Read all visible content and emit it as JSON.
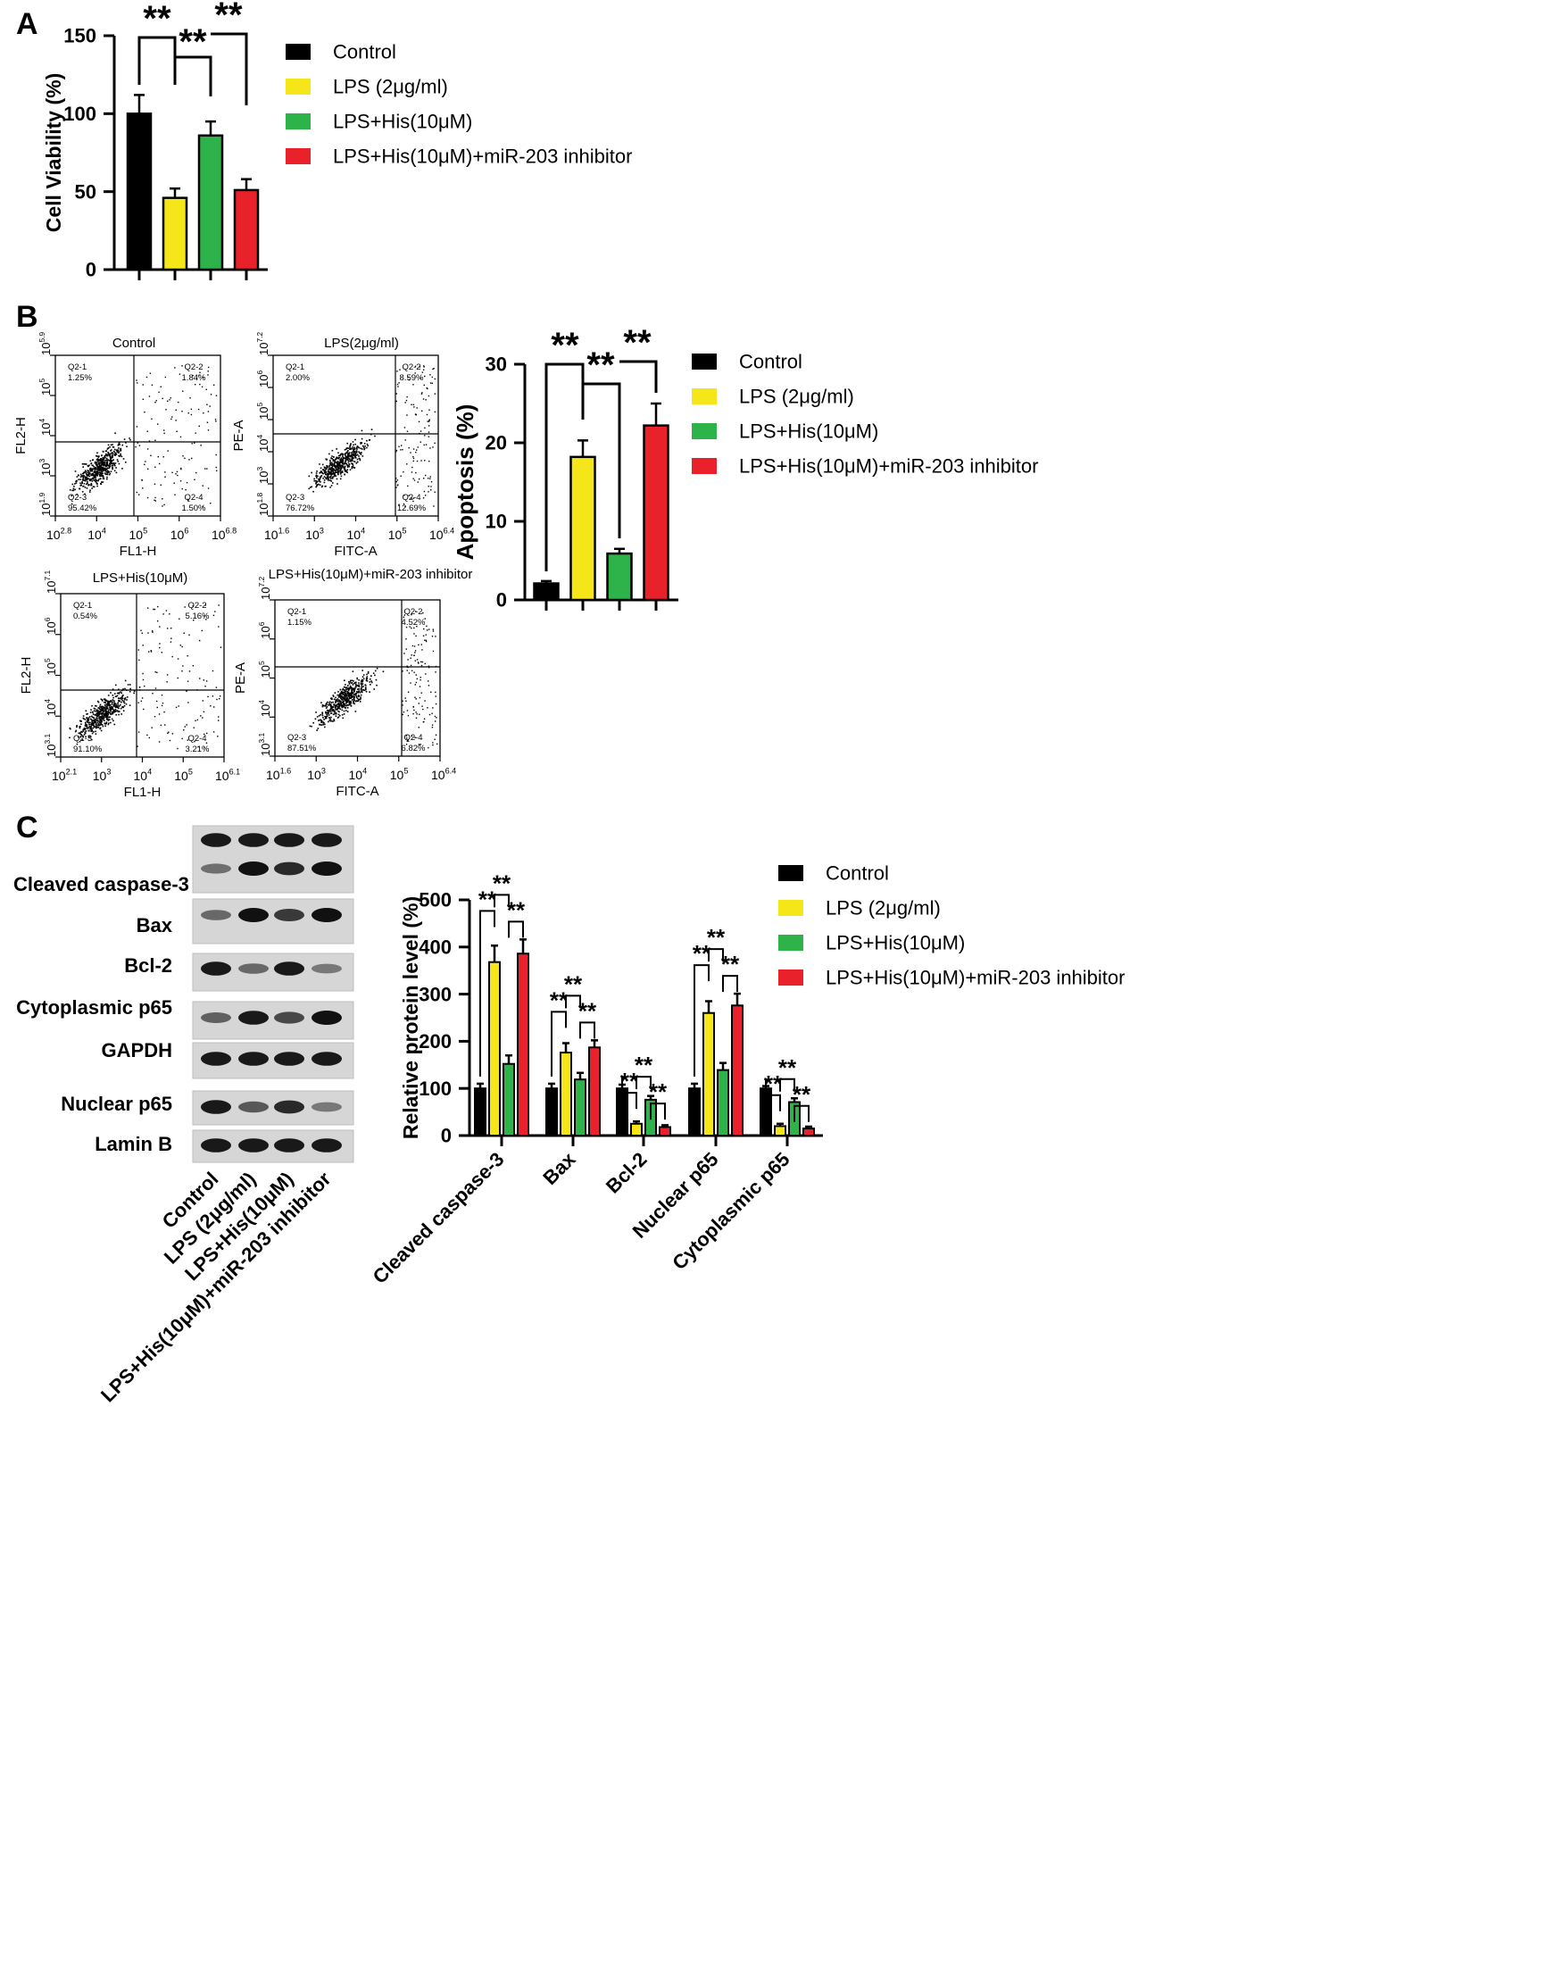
{
  "groups": [
    "Control",
    "LPS (2μg/ml)",
    "LPS+His(10μM)",
    "LPS+His(10μM)+miR-203 inhibitor"
  ],
  "group_colors": [
    "#000000",
    "#f5e61a",
    "#2db34a",
    "#e8212a"
  ],
  "sig_label": "**",
  "panels": {
    "a": "A",
    "b": "B",
    "c": "C"
  },
  "flow_plots": [
    {
      "title": "Control",
      "xlabel": "FL1-H",
      "ylabel": "FL2-H",
      "xticks": [
        "10",
        "10",
        "10",
        "10",
        "10",
        "10"
      ],
      "xtick_exps": [
        "2.8",
        "4",
        "5",
        "6",
        "6.8",
        ""
      ],
      "yticks": [
        "10",
        "10",
        "10",
        "10",
        "10"
      ],
      "ytick_exps": [
        "1.9",
        "3",
        "4",
        "5",
        "5.9"
      ],
      "quadrants": {
        "q1": "Q2-1",
        "q1_val": "1.25%",
        "q2": "Q2-2",
        "q2_val": "1.84%",
        "q3": "Q2-3",
        "q3_val": "95.42%",
        "q4": "Q2-4",
        "q4_val": "1.50%"
      }
    },
    {
      "title": "LPS(2μg/ml)",
      "xlabel": "FITC-A",
      "ylabel": "PE-A",
      "xticks": [
        "10",
        "10",
        "10",
        "10",
        "10",
        "10"
      ],
      "xtick_exps": [
        "1.6",
        "3",
        "4",
        "5",
        "6.4",
        ""
      ],
      "yticks": [
        "10",
        "10",
        "10",
        "10",
        "10",
        "10"
      ],
      "ytick_exps": [
        "1.8",
        "3",
        "4",
        "5",
        "6",
        "7.2"
      ],
      "quadrants": {
        "q1": "Q2-1",
        "q1_val": "2.00%",
        "q2": "Q2-2",
        "q2_val": "8.59%",
        "q3": "Q2-3",
        "q3_val": "76.72%",
        "q4": "Q2-4",
        "q4_val": "12.69%"
      }
    },
    {
      "title": "LPS+His(10μM)",
      "xlabel": "FL1-H",
      "ylabel": "FL2-H",
      "xticks": [
        "10",
        "10",
        "10",
        "10",
        "10",
        "10"
      ],
      "xtick_exps": [
        "2.1",
        "3",
        "4",
        "5",
        "6.1",
        ""
      ],
      "yticks": [
        "10",
        "10",
        "10",
        "10",
        "10"
      ],
      "ytick_exps": [
        "3.1",
        "4",
        "5",
        "6",
        "7.1"
      ],
      "quadrants": {
        "q1": "Q2-1",
        "q1_val": "0.54%",
        "q2": "Q2-2",
        "q2_val": "5.16%",
        "q3": "Q2-3",
        "q3_val": "91.10%",
        "q4": "Q2-4",
        "q4_val": "3.21%"
      }
    },
    {
      "title": "LPS+His(10μM)+miR-203 inhibitor",
      "xlabel": "FITC-A",
      "ylabel": "PE-A",
      "xticks": [
        "10",
        "10",
        "10",
        "10",
        "10",
        "10"
      ],
      "xtick_exps": [
        "1.6",
        "3",
        "4",
        "5",
        "6.4",
        ""
      ],
      "yticks": [
        "10",
        "10",
        "10",
        "10",
        "10"
      ],
      "ytick_exps": [
        "3.1",
        "4",
        "5",
        "6",
        "7.2"
      ],
      "quadrants": {
        "q1": "Q2-1",
        "q1_val": "1.15%",
        "q2": "Q2-2",
        "q2_val": "4.52%",
        "q3": "Q2-3",
        "q3_val": "87.51%",
        "q4": "Q2-4",
        "q4_val": "6.82%"
      }
    }
  ],
  "western_blot": {
    "labels": [
      "Cleaved caspase-3",
      "Bax",
      "Bcl-2",
      "Cytoplasmic p65",
      "GAPDH",
      "Nuclear p65",
      "Lamin B"
    ],
    "lane_labels": [
      "Control",
      "LPS (2μg/ml)",
      "LPS+His(10μM)",
      "LPS+His(10μM)+miR-203 inhibitor"
    ]
  },
  "chart_data": [
    {
      "type": "bar",
      "panel": "A",
      "ylabel": "Cell Viability (%)",
      "ylim": [
        0,
        150
      ],
      "yticks": [
        0,
        50,
        100,
        150
      ],
      "categories": [
        "Control",
        "LPS (2μg/ml)",
        "LPS+His(10μM)",
        "LPS+His(10μM)+miR-203 inhibitor"
      ],
      "values": [
        100,
        46,
        86,
        51
      ],
      "errors": [
        12,
        6,
        9,
        7
      ],
      "significance": [
        "**",
        "**",
        "**"
      ],
      "legend": "right"
    },
    {
      "type": "bar",
      "panel": "B",
      "ylabel": "Apoptosis (%)",
      "ylim": [
        0,
        30
      ],
      "yticks": [
        0,
        10,
        20,
        30
      ],
      "categories": [
        "Control",
        "LPS (2μg/ml)",
        "LPS+His(10μM)",
        "LPS+His(10μM)+miR-203 inhibitor"
      ],
      "values": [
        2.1,
        18.2,
        5.9,
        22.2
      ],
      "errors": [
        0.3,
        2.1,
        0.6,
        2.8
      ],
      "significance": [
        "**",
        "**",
        "**"
      ],
      "legend": "right"
    },
    {
      "type": "bar",
      "panel": "C",
      "ylabel": "Relative protein level (%)",
      "ylim": [
        0,
        500
      ],
      "yticks": [
        0,
        100,
        200,
        300,
        400,
        500
      ],
      "categories": [
        "Cleaved caspase-3",
        "Bax",
        "Bcl-2",
        "Nuclear p65",
        "Cytoplasmic p65"
      ],
      "series": [
        {
          "name": "Control",
          "values": [
            100,
            100,
            100,
            100,
            100
          ],
          "errors": [
            10,
            10,
            8,
            10,
            5
          ]
        },
        {
          "name": "LPS (2μg/ml)",
          "values": [
            368,
            176,
            25,
            260,
            20
          ],
          "errors": [
            35,
            20,
            5,
            25,
            5
          ]
        },
        {
          "name": "LPS+His(10μM)",
          "values": [
            152,
            119,
            76,
            139,
            71
          ],
          "errors": [
            18,
            14,
            8,
            15,
            8
          ]
        },
        {
          "name": "LPS+His(10μM)+miR-203 inhibitor",
          "values": [
            386,
            187,
            18,
            276,
            15
          ],
          "errors": [
            30,
            15,
            4,
            25,
            4
          ]
        }
      ],
      "significance": [
        "**",
        "**",
        "**"
      ],
      "legend": "top-right"
    }
  ]
}
